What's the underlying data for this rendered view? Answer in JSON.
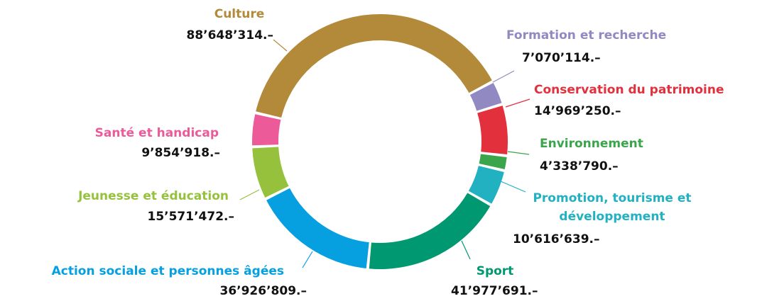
{
  "chart_data": {
    "type": "donut",
    "categories": [
      "Culture",
      "Formation et recherche",
      "Conservation du patrimoine",
      "Environnement",
      "Promotion, tourisme et développement",
      "Sport",
      "Action sociale et personnes âgées",
      "Jeunesse et éducation",
      "Santé et handicap"
    ],
    "values": [
      88648314,
      7070114,
      14969250,
      4338790,
      10616639,
      41977691,
      36926809,
      15571472,
      9854918
    ],
    "value_labels": [
      "88’648’314.–",
      "7’070’114.–",
      "14’969’250.–",
      "4’338’790.–",
      "10’616’639.–",
      "41’977’691.–",
      "36’926’809.–",
      "15’571’472.–",
      "9’854’918.–"
    ],
    "colors": [
      "#b3893a",
      "#9189c2",
      "#e3303d",
      "#3aa54a",
      "#22b1c1",
      "#009870",
      "#06a0e1",
      "#95c13d",
      "#ec5a9a"
    ]
  }
}
